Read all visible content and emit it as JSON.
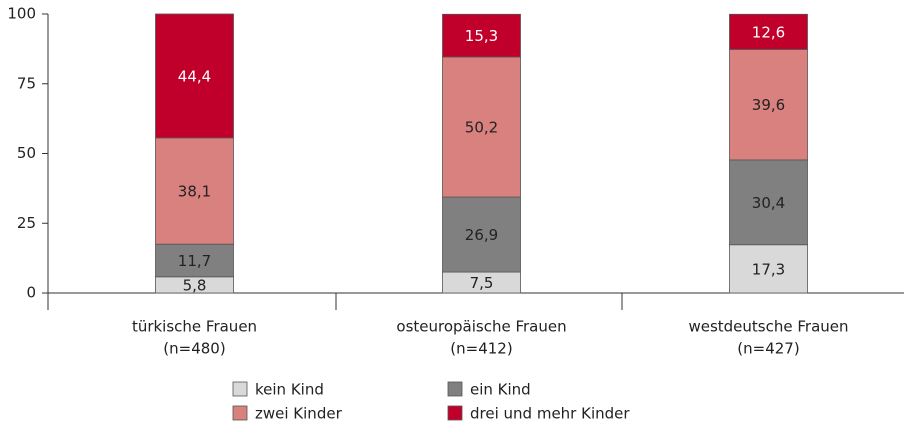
{
  "chart_data": {
    "type": "stacked_bar",
    "categories": [
      [
        "türkische Frauen",
        "(n=480)"
      ],
      [
        "osteuropäische Frauen",
        "(n=412)"
      ],
      [
        "westdeutsche Frauen",
        "(n=427)"
      ]
    ],
    "series": [
      {
        "name": "kein Kind",
        "color": "#d9d9d9",
        "label_color": "#222222",
        "values": [
          5.8,
          7.5,
          17.3
        ],
        "value_labels": [
          "5,8",
          "7,5",
          "17,3"
        ]
      },
      {
        "name": "ein Kind",
        "color": "#808080",
        "label_color": "#222222",
        "values": [
          11.7,
          26.9,
          30.4
        ],
        "value_labels": [
          "11,7",
          "26,9",
          "30,4"
        ]
      },
      {
        "name": "zwei Kinder",
        "color": "#d9817f",
        "label_color": "#222222",
        "values": [
          38.1,
          50.2,
          39.6
        ],
        "value_labels": [
          "38,1",
          "50,2",
          "39,6"
        ]
      },
      {
        "name": "drei und mehr Kinder",
        "color": "#c0002a",
        "label_color": "#ffffff",
        "values": [
          44.4,
          15.3,
          12.6
        ],
        "value_labels": [
          "44,4",
          "15,3",
          "12,6"
        ]
      }
    ],
    "ylim": [
      0,
      100
    ],
    "yticks": [
      0,
      25,
      50,
      75,
      100
    ]
  }
}
